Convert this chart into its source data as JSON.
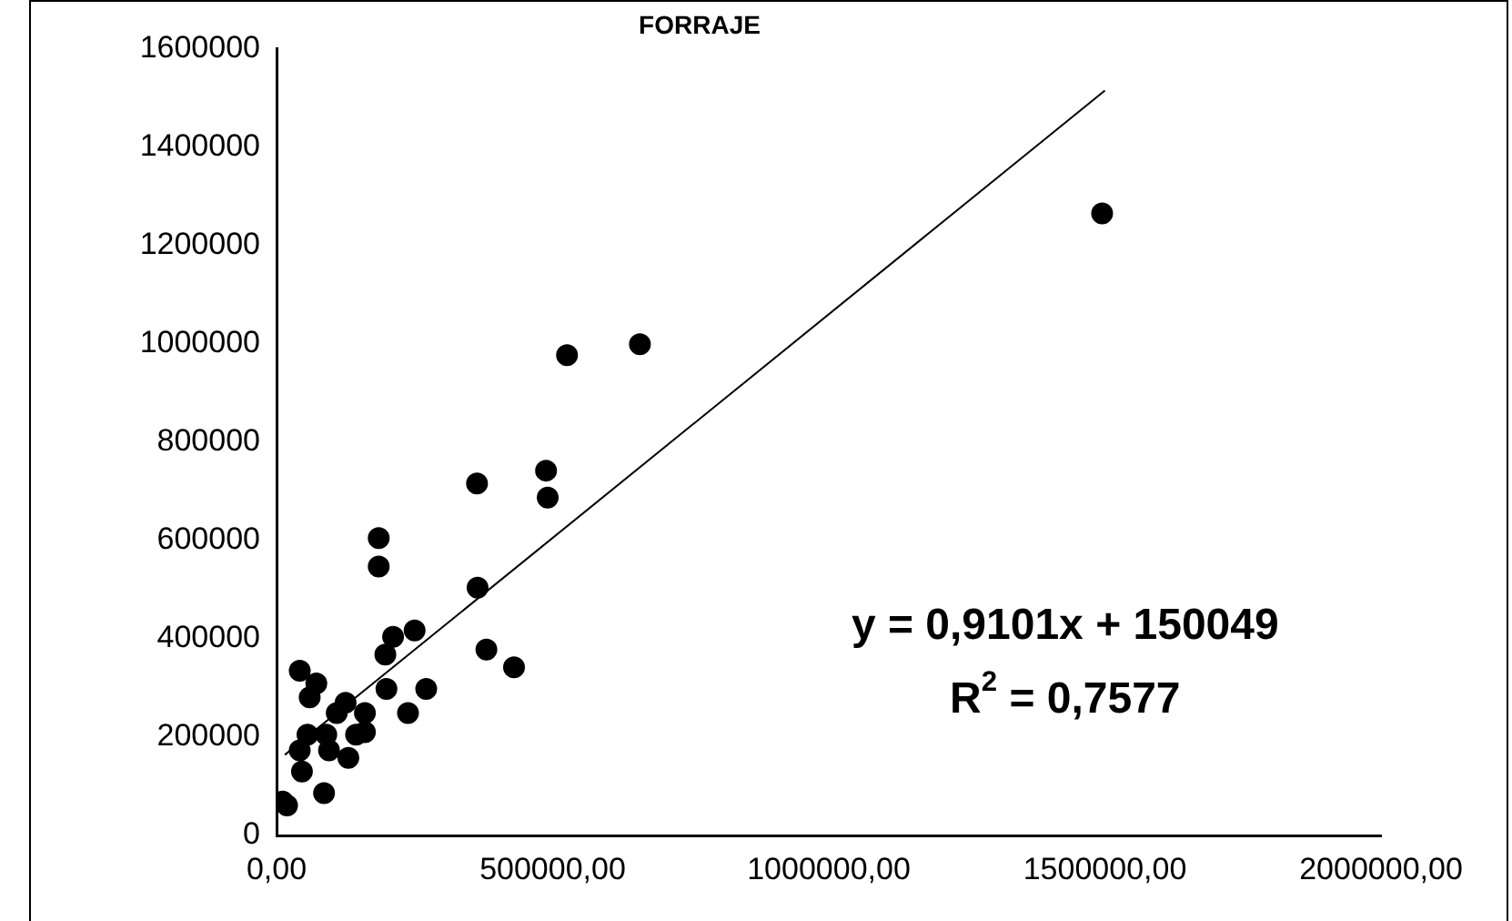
{
  "chart_data": {
    "type": "scatter",
    "title": "FORRAJE",
    "x": [
      19000,
      11000,
      86000,
      46000,
      42000,
      56000,
      90000,
      95000,
      130000,
      144000,
      160000,
      160000,
      109000,
      125000,
      42000,
      72000,
      60000,
      199000,
      238000,
      271000,
      197000,
      211000,
      250000,
      185000,
      185000,
      364000,
      380000,
      430000,
      363000,
      488000,
      491000,
      526000,
      658000,
      1495000
    ],
    "values": [
      61000,
      69000,
      86000,
      130000,
      173000,
      205000,
      205000,
      173000,
      158000,
      205000,
      210000,
      249000,
      249000,
      270000,
      335000,
      309000,
      281000,
      298000,
      249000,
      298000,
      368000,
      404000,
      417000,
      547000,
      605000,
      504000,
      378000,
      342000,
      716000,
      742000,
      687000,
      977000,
      999000,
      1265000
    ],
    "color": "#000000",
    "marker": "circle",
    "series": [
      {
        "type": "line",
        "x": [
          15000,
          1500000
        ],
        "values": [
          164000,
          1515000
        ],
        "color": "#000000",
        "marker": "none"
      }
    ],
    "xlim": [
      0,
      2000000
    ],
    "xticks": [
      {
        "value": 0,
        "label": "0,00"
      },
      {
        "value": 500000,
        "label": "500000,00"
      },
      {
        "value": 1000000,
        "label": "1000000,00"
      },
      {
        "value": 1500000,
        "label": "1500000,00"
      },
      {
        "value": 2000000,
        "label": "2000000,00"
      }
    ],
    "ylim": [
      0,
      1600000
    ],
    "yticks": [
      0,
      200000,
      400000,
      600000,
      800000,
      1000000,
      1200000,
      1400000,
      1600000
    ],
    "grid": false,
    "legend": false,
    "annotations": [
      "y = 0,9101x + 150049",
      "R$^{2}$ = 0,7577"
    ]
  }
}
